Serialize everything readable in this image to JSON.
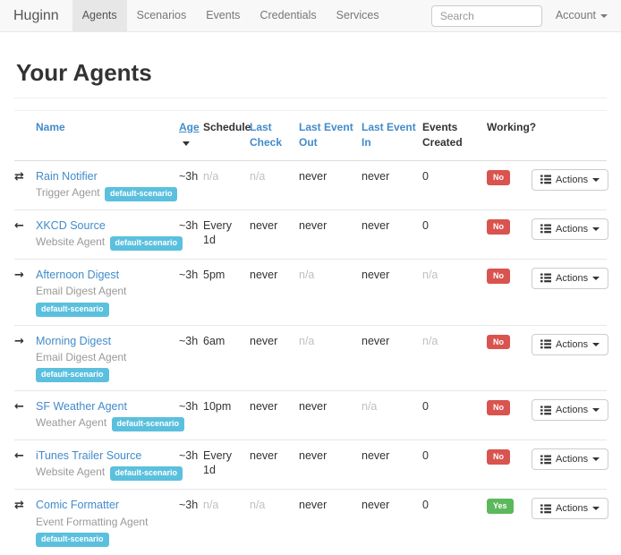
{
  "navbar": {
    "brand": "Huginn",
    "items": [
      {
        "label": "Agents",
        "active": true
      },
      {
        "label": "Scenarios",
        "active": false
      },
      {
        "label": "Events",
        "active": false
      },
      {
        "label": "Credentials",
        "active": false
      },
      {
        "label": "Services",
        "active": false
      }
    ],
    "search_placeholder": "Search",
    "account_label": "Account"
  },
  "page": {
    "title": "Your Agents"
  },
  "table": {
    "columns": [
      {
        "label": "Name",
        "sortable": true,
        "sorted": false
      },
      {
        "label": "Age",
        "sortable": true,
        "sorted": "desc"
      },
      {
        "label": "Schedule",
        "sortable": false,
        "sorted": false
      },
      {
        "label": "Last Check",
        "sortable": true,
        "sorted": false
      },
      {
        "label": "Last Event Out",
        "sortable": true,
        "sorted": false
      },
      {
        "label": "Last Event In",
        "sortable": true,
        "sorted": false
      },
      {
        "label": "Events Created",
        "sortable": false,
        "sorted": false
      },
      {
        "label": "Working?",
        "sortable": false,
        "sorted": false
      }
    ],
    "actions_label": "Actions",
    "rows": [
      {
        "icon": "transfer-icon",
        "name": "Rain Notifier",
        "type": "Trigger Agent",
        "scenario": "default-scenario",
        "age": "~3h",
        "schedule": "n/a",
        "last_check": "n/a",
        "last_event_out": "never",
        "last_event_in": "never",
        "events_created": "0",
        "working": "No"
      },
      {
        "icon": "arrow-left-icon",
        "name": "XKCD Source",
        "type": "Website Agent",
        "scenario": "default-scenario",
        "age": "~3h",
        "schedule": "Every 1d",
        "last_check": "never",
        "last_event_out": "never",
        "last_event_in": "never",
        "events_created": "0",
        "working": "No"
      },
      {
        "icon": "arrow-right-icon",
        "name": "Afternoon Digest",
        "type": "Email Digest Agent",
        "scenario": "default-scenario",
        "age": "~3h",
        "schedule": "5pm",
        "last_check": "never",
        "last_event_out": "n/a",
        "last_event_in": "never",
        "events_created": "n/a",
        "working": "No"
      },
      {
        "icon": "arrow-right-icon",
        "name": "Morning Digest",
        "type": "Email Digest Agent",
        "scenario": "default-scenario",
        "age": "~3h",
        "schedule": "6am",
        "last_check": "never",
        "last_event_out": "n/a",
        "last_event_in": "never",
        "events_created": "n/a",
        "working": "No"
      },
      {
        "icon": "arrow-left-icon",
        "name": "SF Weather Agent",
        "type": "Weather Agent",
        "scenario": "default-scenario",
        "age": "~3h",
        "schedule": "10pm",
        "last_check": "never",
        "last_event_out": "never",
        "last_event_in": "n/a",
        "events_created": "0",
        "working": "No"
      },
      {
        "icon": "arrow-left-icon",
        "name": "iTunes Trailer Source",
        "type": "Website Agent",
        "scenario": "default-scenario",
        "age": "~3h",
        "schedule": "Every 1d",
        "last_check": "never",
        "last_event_out": "never",
        "last_event_in": "never",
        "events_created": "0",
        "working": "No"
      },
      {
        "icon": "transfer-icon",
        "name": "Comic Formatter",
        "type": "Event Formatting Agent",
        "scenario": "default-scenario",
        "age": "~3h",
        "schedule": "n/a",
        "last_check": "n/a",
        "last_event_out": "never",
        "last_event_in": "never",
        "events_created": "0",
        "working": "Yes"
      }
    ]
  },
  "colors": {
    "link": "#428bca",
    "badge_info": "#5bc0de",
    "badge_danger": "#d9534f",
    "badge_success": "#5cb85c",
    "navbar_bg": "#f8f8f8",
    "navbar_active_bg": "#e7e7e7",
    "muted_text": "#c0c0c0"
  }
}
